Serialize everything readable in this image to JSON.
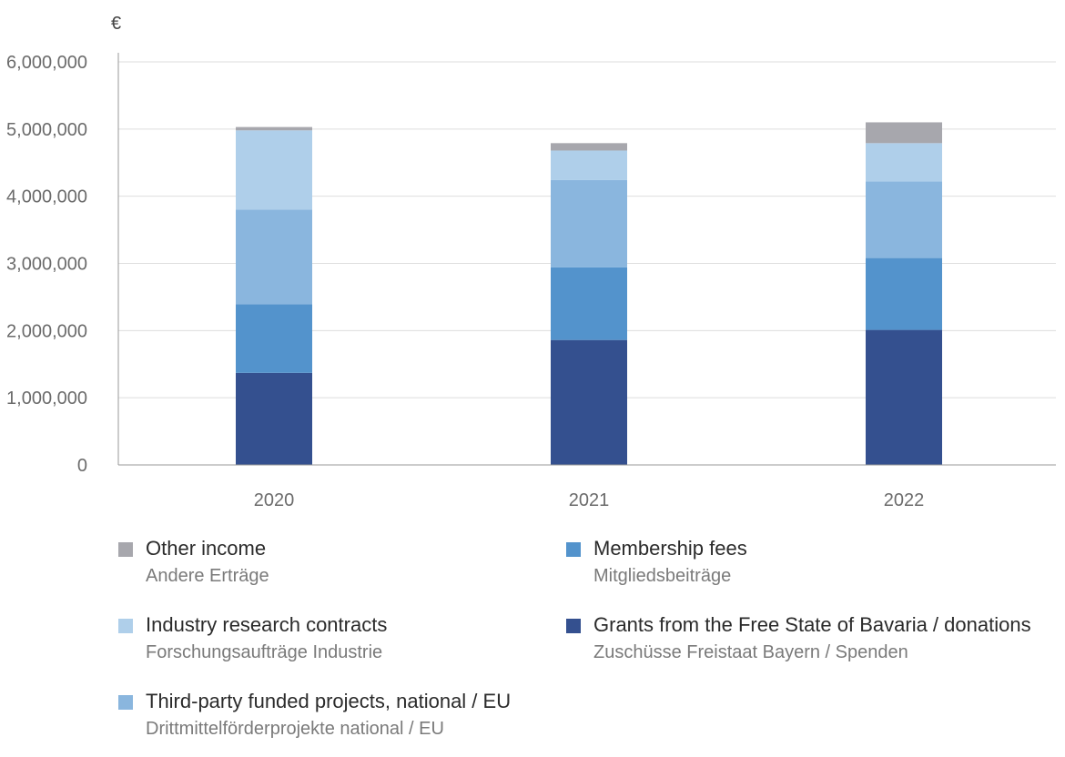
{
  "chart_data": {
    "type": "bar",
    "stacked": true,
    "unit_label": "€",
    "categories": [
      "2020",
      "2021",
      "2022"
    ],
    "ylim": [
      0,
      6000000
    ],
    "yticks": [
      0,
      1000000,
      2000000,
      3000000,
      4000000,
      5000000,
      6000000
    ],
    "ytick_labels": [
      "0",
      "1,000,000",
      "2,000,000",
      "3,000,000",
      "4,000,000",
      "5,000,000",
      "6,000,000"
    ],
    "grid": true,
    "legend_position": "bottom",
    "series": [
      {
        "name": "Grants from the Free State of Bavaria / donations",
        "name_de": "Zuschüsse Freistaat Bayern / Spenden",
        "color": "#34508f",
        "values": [
          1370000,
          1860000,
          2010000
        ]
      },
      {
        "name": "Membership fees",
        "name_de": "Mitgliedsbeiträge",
        "color": "#5393cc",
        "values": [
          1020000,
          1080000,
          1070000
        ]
      },
      {
        "name": "Third-party funded projects, national / EU",
        "name_de": "Drittmittelförderprojekte national / EU",
        "color": "#8ab6de",
        "values": [
          1410000,
          1300000,
          1140000
        ]
      },
      {
        "name": "Industry research contracts",
        "name_de": "Forschungsaufträge Industrie",
        "color": "#afcfea",
        "values": [
          1180000,
          440000,
          570000
        ]
      },
      {
        "name": "Other income",
        "name_de": "Andere Erträge",
        "color": "#a7a7ad",
        "values": [
          50000,
          110000,
          310000
        ]
      }
    ]
  }
}
